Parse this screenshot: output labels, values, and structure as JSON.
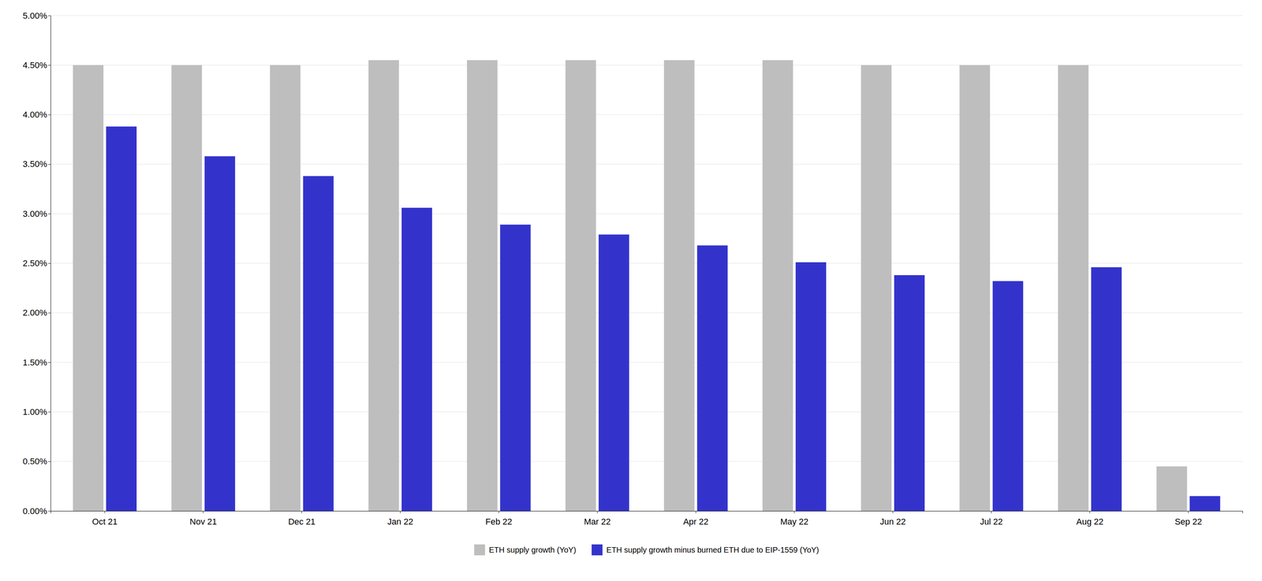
{
  "chart_data": {
    "type": "bar",
    "categories": [
      "Oct 21",
      "Nov 21",
      "Dec 21",
      "Jan 22",
      "Feb 22",
      "Mar 22",
      "Apr 22",
      "May 22",
      "Jun 22",
      "Jul 22",
      "Aug 22",
      "Sep 22"
    ],
    "series": [
      {
        "name": "ETH supply growth (YoY)",
        "color": "#BEBEBE",
        "values": [
          0.045,
          0.045,
          0.045,
          0.0455,
          0.0455,
          0.0455,
          0.0455,
          0.0455,
          0.045,
          0.045,
          0.045,
          0.0045
        ]
      },
      {
        "name": "ETH supply growth minus burned ETH due to EIP-1559 (YoY)",
        "color": "#3333CC",
        "values": [
          0.0388,
          0.0358,
          0.0338,
          0.0306,
          0.0289,
          0.0279,
          0.0268,
          0.0251,
          0.0238,
          0.0232,
          0.0246,
          0.0015
        ]
      }
    ],
    "ylim": [
      0.0,
      0.05
    ],
    "yticks": [
      {
        "value": 0.0,
        "label": "0.00%"
      },
      {
        "value": 0.005,
        "label": "0.50%"
      },
      {
        "value": 0.01,
        "label": "1.00%"
      },
      {
        "value": 0.015,
        "label": "1.50%"
      },
      {
        "value": 0.02,
        "label": "2.00%"
      },
      {
        "value": 0.025,
        "label": "2.50%"
      },
      {
        "value": 0.03,
        "label": "3.00%"
      },
      {
        "value": 0.035,
        "label": "3.50%"
      },
      {
        "value": 0.04,
        "label": "4.00%"
      },
      {
        "value": 0.045,
        "label": "4.50%"
      },
      {
        "value": 0.05,
        "label": "5.00%"
      }
    ],
    "grid": true,
    "legend": "bottom"
  }
}
